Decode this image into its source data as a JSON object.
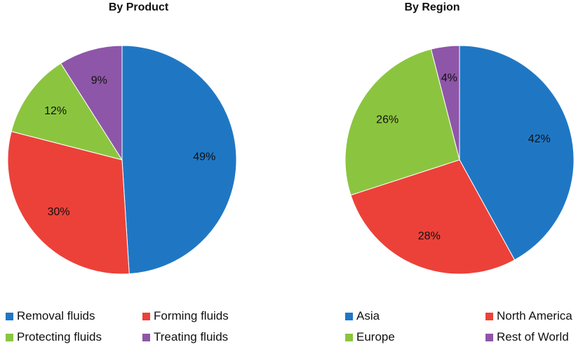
{
  "chart_data": [
    {
      "type": "pie",
      "title": "By Product",
      "categories": [
        "Removal fluids",
        "Forming fluids",
        "Protecting fluids",
        "Treating fluids"
      ],
      "values": [
        49,
        30,
        12,
        9
      ],
      "labels": [
        "49%",
        "30%",
        "12%",
        "9%"
      ],
      "colors": [
        "#1F77C4",
        "#EC4139",
        "#8BC53F",
        "#8E56A8"
      ],
      "legend_position": "bottom"
    },
    {
      "type": "pie",
      "title": "By Region",
      "categories": [
        "Asia",
        "North America",
        "Europe",
        "Rest of World"
      ],
      "values": [
        42,
        28,
        26,
        4
      ],
      "labels": [
        "42%",
        "28%",
        "26%",
        "4%"
      ],
      "colors": [
        "#1F77C4",
        "#EC4139",
        "#8BC53F",
        "#8E56A8"
      ],
      "legend_position": "bottom"
    }
  ]
}
